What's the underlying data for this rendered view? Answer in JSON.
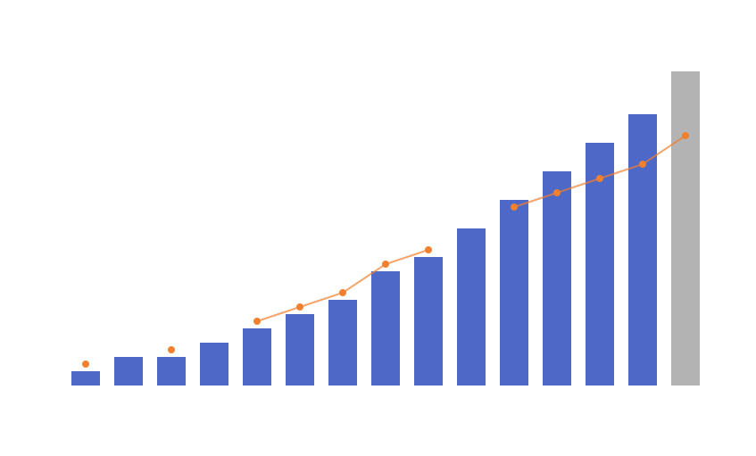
{
  "chart_data": {
    "type": "bar",
    "values": [
      1,
      2,
      2,
      3,
      4,
      5,
      6,
      8,
      9,
      11,
      13,
      15,
      17,
      19,
      22
    ],
    "colors": [
      "#4e68c8",
      "#4e68c8",
      "#4e68c8",
      "#4e68c8",
      "#4e68c8",
      "#4e68c8",
      "#4e68c8",
      "#4e68c8",
      "#4e68c8",
      "#4e68c8",
      "#4e68c8",
      "#4e68c8",
      "#4e68c8",
      "#4e68c8",
      "#b3b3b3"
    ],
    "line_values": [
      1.5,
      null,
      2.5,
      null,
      4.5,
      5.5,
      6.5,
      8.5,
      9.5,
      null,
      12.5,
      13.5,
      14.5,
      15.5,
      17.5
    ],
    "line_color": "#f07f2e",
    "ylim": [
      0,
      22
    ]
  }
}
